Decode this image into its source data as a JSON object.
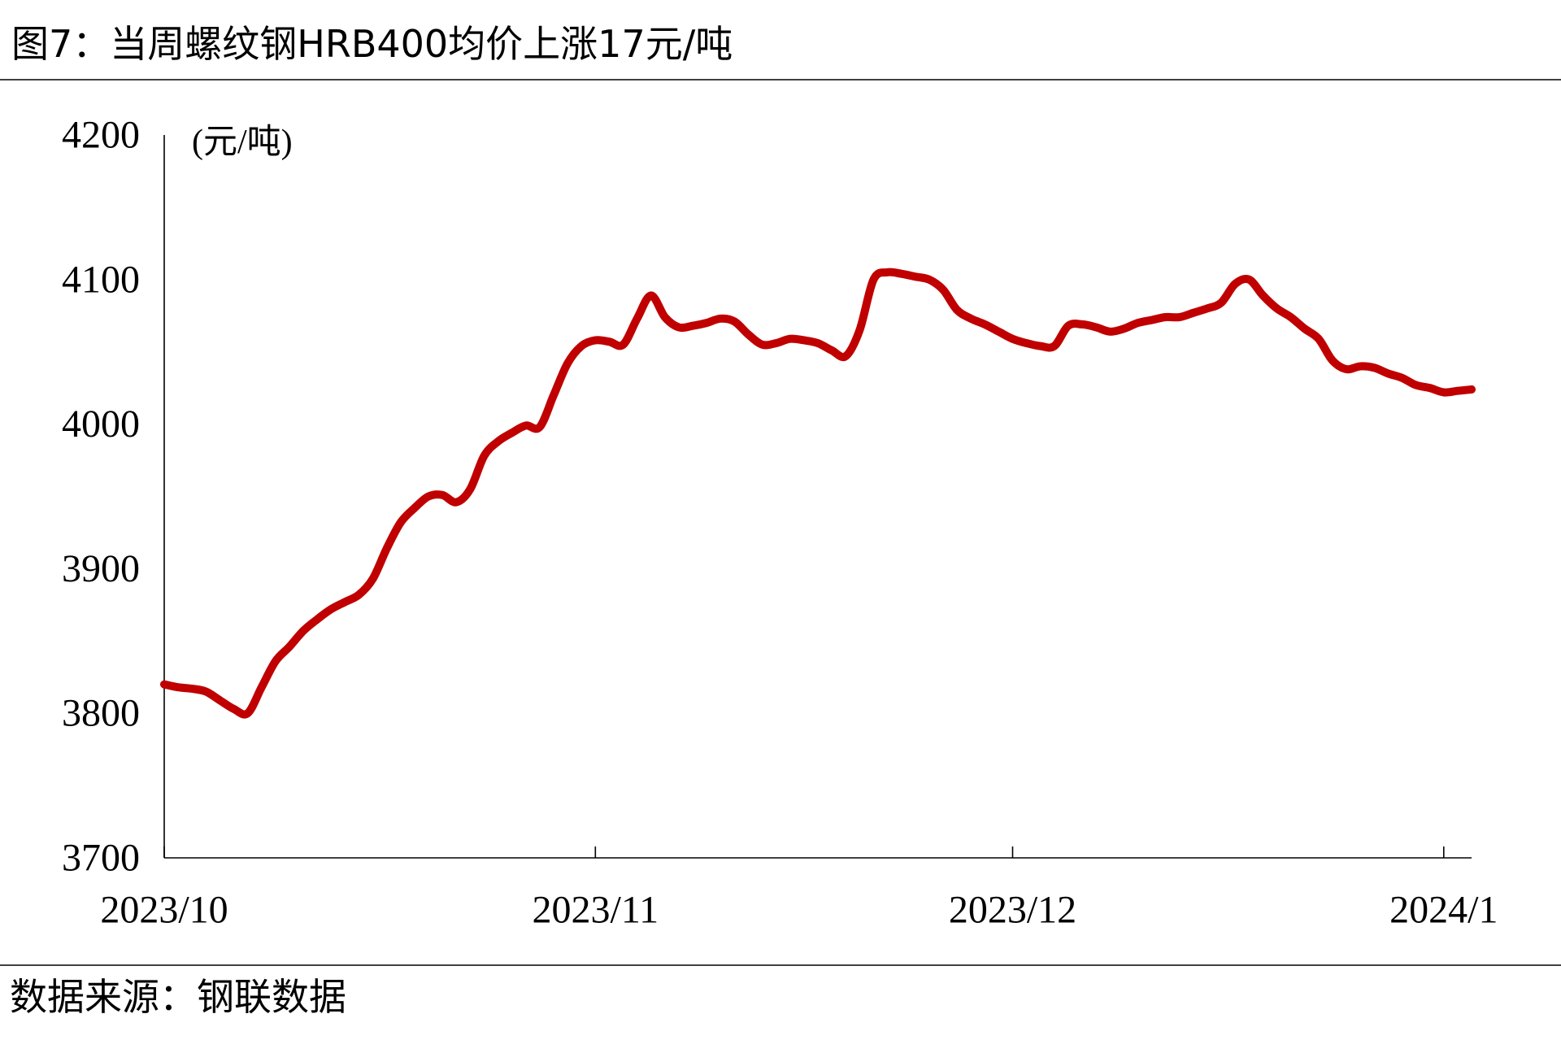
{
  "source": "数据来源：钢联数据",
  "colors": {
    "line": "#C00000",
    "axis": "#000000",
    "rule": "#404040"
  },
  "chart_data": {
    "type": "line",
    "title": "图7：当周螺纹钢HRB400均价上涨17元/吨",
    "ylabel": "(元/吨)",
    "xlim": [
      "2023-10-01",
      "2024-01-03"
    ],
    "ylim": [
      3700,
      4200
    ],
    "yticks": [
      3700,
      3800,
      3900,
      4000,
      4100,
      4200
    ],
    "xticks": [
      {
        "date": "2023-10-01",
        "label": "2023/10"
      },
      {
        "date": "2023-11-01",
        "label": "2023/11"
      },
      {
        "date": "2023-12-01",
        "label": "2023/12"
      },
      {
        "date": "2024-01-01",
        "label": "2024/1"
      }
    ],
    "grid": false,
    "legend": "none",
    "series": [
      {
        "color": "#C00000",
        "x": [
          "2023-10-01",
          "2023-10-02",
          "2023-10-03",
          "2023-10-04",
          "2023-10-05",
          "2023-10-06",
          "2023-10-07",
          "2023-10-08",
          "2023-10-09",
          "2023-10-10",
          "2023-10-11",
          "2023-10-12",
          "2023-10-13",
          "2023-10-14",
          "2023-10-15",
          "2023-10-16",
          "2023-10-17",
          "2023-10-18",
          "2023-10-19",
          "2023-10-20",
          "2023-10-21",
          "2023-10-22",
          "2023-10-23",
          "2023-10-24",
          "2023-10-25",
          "2023-10-26",
          "2023-10-27",
          "2023-10-28",
          "2023-10-29",
          "2023-10-30",
          "2023-10-31",
          "2023-11-01",
          "2023-11-02",
          "2023-11-03",
          "2023-11-04",
          "2023-11-05",
          "2023-11-06",
          "2023-11-07",
          "2023-11-08",
          "2023-11-09",
          "2023-11-10",
          "2023-11-11",
          "2023-11-12",
          "2023-11-13",
          "2023-11-14",
          "2023-11-15",
          "2023-11-16",
          "2023-11-17",
          "2023-11-18",
          "2023-11-19",
          "2023-11-20",
          "2023-11-21",
          "2023-11-22",
          "2023-11-23",
          "2023-11-24",
          "2023-11-25",
          "2023-11-26",
          "2023-11-27",
          "2023-11-28",
          "2023-11-29",
          "2023-11-30",
          "2023-12-01",
          "2023-12-02",
          "2023-12-03",
          "2023-12-04",
          "2023-12-05",
          "2023-12-06",
          "2023-12-07",
          "2023-12-08",
          "2023-12-09",
          "2023-12-10",
          "2023-12-11",
          "2023-12-12",
          "2023-12-13",
          "2023-12-14",
          "2023-12-15",
          "2023-12-16",
          "2023-12-17",
          "2023-12-18",
          "2023-12-19",
          "2023-12-20",
          "2023-12-21",
          "2023-12-22",
          "2023-12-23",
          "2023-12-24",
          "2023-12-25",
          "2023-12-26",
          "2023-12-27",
          "2023-12-28",
          "2023-12-29",
          "2023-12-30",
          "2023-12-31",
          "2024-01-01",
          "2024-01-02",
          "2024-01-03"
        ],
        "y": [
          3820,
          3818,
          3817,
          3815,
          3809,
          3803,
          3800,
          3818,
          3836,
          3846,
          3857,
          3865,
          3872,
          3877,
          3882,
          3893,
          3914,
          3932,
          3942,
          3950,
          3951,
          3946,
          3955,
          3978,
          3988,
          3994,
          3999,
          3998,
          4020,
          4042,
          4054,
          4058,
          4057,
          4055,
          4073,
          4089,
          4074,
          4067,
          4068,
          4070,
          4073,
          4071,
          4062,
          4055,
          4056,
          4059,
          4058,
          4056,
          4051,
          4047,
          4065,
          4100,
          4105,
          4104,
          4102,
          4100,
          4093,
          4079,
          4073,
          4069,
          4064,
          4059,
          4056,
          4054,
          4054,
          4068,
          4069,
          4067,
          4064,
          4066,
          4070,
          4072,
          4074,
          4074,
          4077,
          4080,
          4084,
          4097,
          4100,
          4089,
          4080,
          4074,
          4066,
          4059,
          4044,
          4038,
          4040,
          4039,
          4035,
          4032,
          4027,
          4025,
          4022,
          4023,
          4024
        ]
      }
    ]
  }
}
